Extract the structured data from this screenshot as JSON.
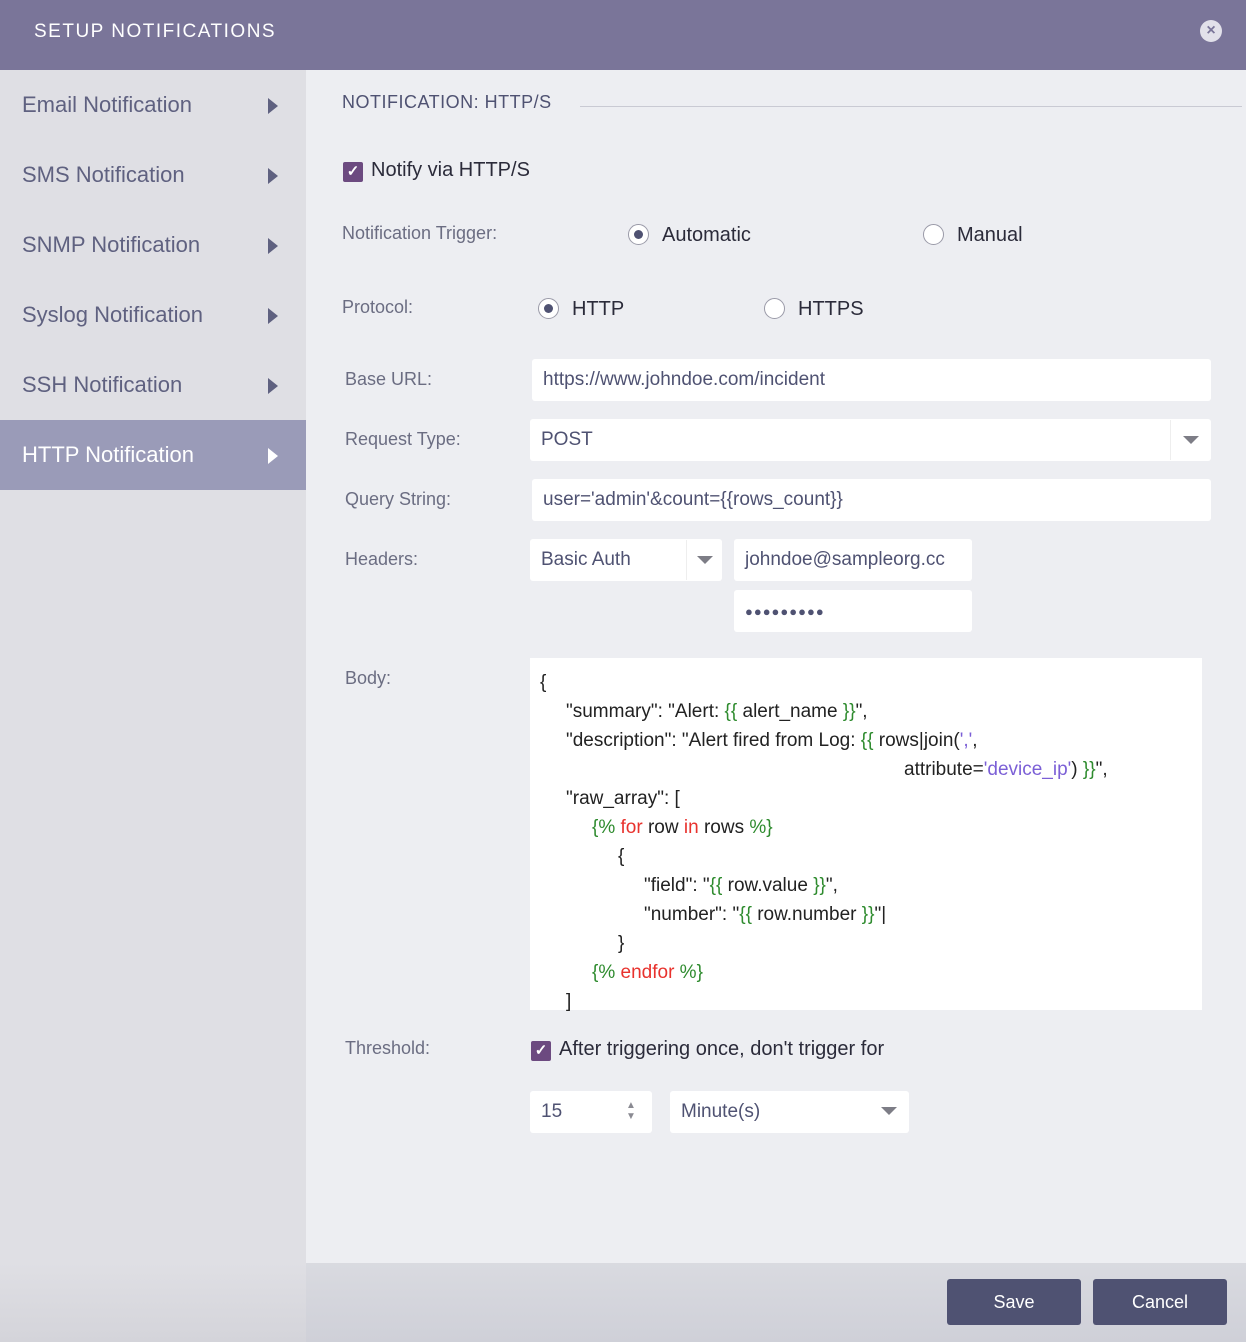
{
  "header": {
    "title": "SETUP NOTIFICATIONS",
    "close_icon": "close-circle-icon"
  },
  "sidebar": {
    "items": [
      {
        "label": "Email Notification"
      },
      {
        "label": "SMS Notification"
      },
      {
        "label": "SNMP Notification"
      },
      {
        "label": "Syslog Notification"
      },
      {
        "label": "SSH Notification"
      },
      {
        "label": "HTTP Notification",
        "active": true
      }
    ]
  },
  "main": {
    "section_title": "NOTIFICATION: HTTP/S",
    "notify": {
      "label": "Notify via HTTP/S",
      "checked": true
    },
    "trigger": {
      "label": "Notification Trigger:",
      "options": [
        "Automatic",
        "Manual"
      ],
      "selected": "Automatic"
    },
    "protocol": {
      "label": "Protocol:",
      "options": [
        "HTTP",
        "HTTPS"
      ],
      "selected": "HTTP"
    },
    "base_url": {
      "label": "Base URL:",
      "value": "https://www.johndoe.com/incident"
    },
    "request_type": {
      "label": "Request Type:",
      "value": "POST"
    },
    "query_string": {
      "label": "Query String:",
      "value": "user='admin'&count={{rows_count}}"
    },
    "headers": {
      "label": "Headers:",
      "type": "Basic Auth",
      "username": "johndoe@sampleorg.cc",
      "password": "●●●●●●●●●"
    },
    "body": {
      "label": "Body:",
      "lines": [
        {
          "indent": 0,
          "tokens": [
            [
              "{",
              ""
            ]
          ]
        },
        {
          "indent": 1,
          "tokens": [
            [
              "\"summary\": \"Alert: ",
              ""
            ],
            [
              "{{",
              "g"
            ],
            [
              " alert_name ",
              ""
            ],
            [
              "}}",
              "g"
            ],
            [
              "\",",
              ""
            ]
          ]
        },
        {
          "indent": 1,
          "tokens": [
            [
              "\"description\": \"Alert fired from Log: ",
              ""
            ],
            [
              "{{",
              "g"
            ],
            [
              " rows|join(",
              ""
            ],
            [
              "','",
              "p"
            ],
            [
              ",",
              ""
            ]
          ]
        },
        {
          "indent": 14,
          "tokens": [
            [
              "attribute=",
              ""
            ],
            [
              "'device_ip'",
              "p"
            ],
            [
              ") ",
              ""
            ],
            [
              "}}",
              "g"
            ],
            [
              "\",",
              ""
            ]
          ]
        },
        {
          "indent": 1,
          "tokens": [
            [
              "\"raw_array\": [",
              ""
            ]
          ]
        },
        {
          "indent": 2,
          "tokens": [
            [
              "{%",
              "g"
            ],
            [
              " for",
              "r"
            ],
            [
              " row ",
              ""
            ],
            [
              "in",
              "r"
            ],
            [
              " rows ",
              ""
            ],
            [
              "%}",
              "g"
            ]
          ]
        },
        {
          "indent": 3,
          "tokens": [
            [
              "{",
              ""
            ]
          ]
        },
        {
          "indent": 4,
          "tokens": [
            [
              "\"field\": \"",
              ""
            ],
            [
              "{{",
              "g"
            ],
            [
              " row.value ",
              ""
            ],
            [
              "}}",
              "g"
            ],
            [
              "\",",
              ""
            ]
          ]
        },
        {
          "indent": 4,
          "tokens": [
            [
              "\"number\": \"",
              ""
            ],
            [
              "{{",
              "g"
            ],
            [
              " row.number ",
              ""
            ],
            [
              "}}",
              "g"
            ],
            [
              "\"|",
              ""
            ]
          ]
        },
        {
          "indent": 3,
          "tokens": [
            [
              "}",
              ""
            ]
          ]
        },
        {
          "indent": 2,
          "tokens": [
            [
              "{%",
              "g"
            ],
            [
              " endfor",
              "r"
            ],
            [
              " %}",
              "g"
            ]
          ]
        },
        {
          "indent": 1,
          "tokens": [
            [
              "]",
              ""
            ]
          ]
        }
      ]
    },
    "threshold": {
      "label": "Threshold:",
      "checkbox_label": "After triggering once, don't trigger for",
      "checked": true,
      "value": "15",
      "unit": "Minute(s)"
    }
  },
  "footer": {
    "save": "Save",
    "cancel": "Cancel"
  },
  "colors": {
    "header": "#7a7599",
    "accent": "#6c4a80",
    "button": "#4f5272",
    "active_item": "#9a9bb8"
  }
}
